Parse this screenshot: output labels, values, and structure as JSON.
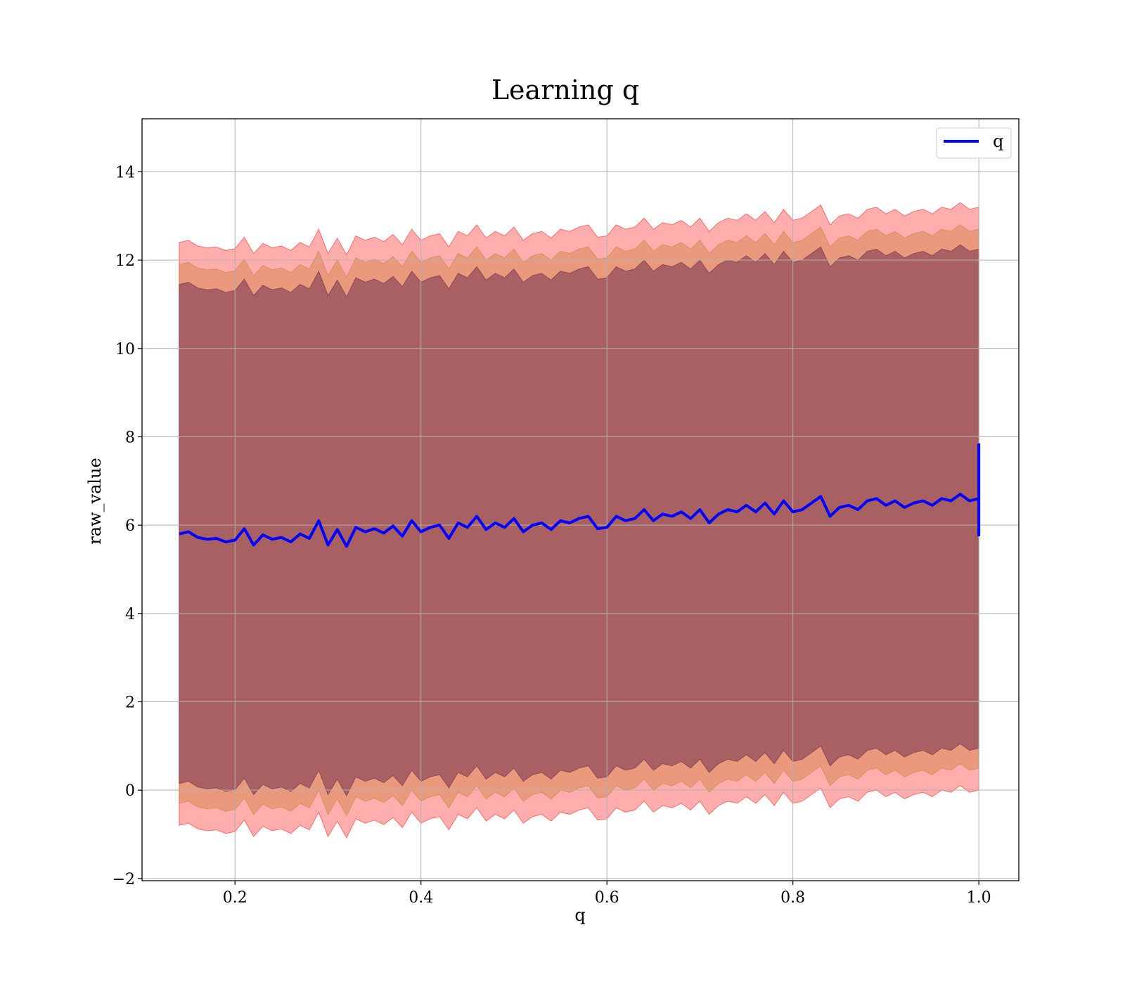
{
  "chart_data": {
    "type": "line",
    "title": "Learning q",
    "xlabel": "q",
    "ylabel": "raw_value",
    "xlim": [
      0.1,
      1.043
    ],
    "ylim": [
      -2.05,
      15.2
    ],
    "xticks": [
      {
        "value": 0.2,
        "label": "0.2"
      },
      {
        "value": 0.4,
        "label": "0.4"
      },
      {
        "value": 0.6,
        "label": "0.6"
      },
      {
        "value": 0.8,
        "label": "0.8"
      },
      {
        "value": 1.0,
        "label": "1.0"
      }
    ],
    "yticks": [
      {
        "value": -2,
        "label": "−2"
      },
      {
        "value": 0,
        "label": "0"
      },
      {
        "value": 2,
        "label": "2"
      },
      {
        "value": 4,
        "label": "4"
      },
      {
        "value": 6,
        "label": "6"
      },
      {
        "value": 8,
        "label": "8"
      },
      {
        "value": 10,
        "label": "10"
      },
      {
        "value": 12,
        "label": "12"
      },
      {
        "value": 14,
        "label": "14"
      }
    ],
    "grid": true,
    "legend": {
      "position": "top-right",
      "entries": [
        {
          "label": "q",
          "color": "#0000ff"
        }
      ]
    },
    "series": [
      {
        "name": "q",
        "color": "#0000ff",
        "x": [
          0.14,
          0.15,
          0.16,
          0.17,
          0.18,
          0.19,
          0.2,
          0.21,
          0.22,
          0.23,
          0.24,
          0.25,
          0.26,
          0.27,
          0.28,
          0.29,
          0.3,
          0.31,
          0.32,
          0.33,
          0.34,
          0.35,
          0.36,
          0.37,
          0.38,
          0.39,
          0.4,
          0.41,
          0.42,
          0.43,
          0.44,
          0.45,
          0.46,
          0.47,
          0.48,
          0.49,
          0.5,
          0.51,
          0.52,
          0.53,
          0.54,
          0.55,
          0.56,
          0.57,
          0.58,
          0.59,
          0.6,
          0.61,
          0.62,
          0.63,
          0.64,
          0.65,
          0.66,
          0.67,
          0.68,
          0.69,
          0.7,
          0.71,
          0.72,
          0.73,
          0.74,
          0.75,
          0.76,
          0.77,
          0.78,
          0.79,
          0.8,
          0.81,
          0.82,
          0.83,
          0.84,
          0.85,
          0.86,
          0.87,
          0.88,
          0.89,
          0.9,
          0.91,
          0.92,
          0.93,
          0.94,
          0.95,
          0.96,
          0.97,
          0.98,
          0.99,
          1.0
        ],
        "y": [
          5.8,
          5.85,
          5.72,
          5.68,
          5.7,
          5.62,
          5.66,
          5.92,
          5.55,
          5.78,
          5.68,
          5.72,
          5.62,
          5.8,
          5.7,
          6.1,
          5.55,
          5.9,
          5.52,
          5.95,
          5.85,
          5.92,
          5.82,
          5.98,
          5.75,
          6.1,
          5.85,
          5.95,
          6.0,
          5.7,
          6.05,
          5.95,
          6.2,
          5.9,
          6.05,
          5.95,
          6.15,
          5.85,
          6.0,
          6.05,
          5.9,
          6.1,
          6.05,
          6.15,
          6.2,
          5.92,
          5.95,
          6.2,
          6.1,
          6.15,
          6.35,
          6.1,
          6.25,
          6.2,
          6.3,
          6.15,
          6.35,
          6.05,
          6.25,
          6.35,
          6.3,
          6.45,
          6.3,
          6.5,
          6.25,
          6.55,
          6.3,
          6.35,
          6.5,
          6.65,
          6.2,
          6.4,
          6.45,
          6.35,
          6.55,
          6.6,
          6.45,
          6.55,
          6.4,
          6.5,
          6.55,
          6.45,
          6.6,
          6.55,
          6.7,
          6.55,
          6.6
        ]
      }
    ],
    "bands": [
      {
        "color": "#ff0000",
        "opacity": 0.32,
        "lower_offset": -6.6,
        "upper_offset": 6.6
      },
      {
        "color": "#d08040",
        "opacity": 0.45,
        "lower_offset": -6.1,
        "upper_offset": 6.1
      },
      {
        "color": "#7d3b52",
        "opacity": 0.6,
        "lower_offset": -5.65,
        "upper_offset": 5.65
      }
    ],
    "endpoint_spike": {
      "x": 1.0,
      "y_low": 5.75,
      "y_high": 7.85
    }
  }
}
